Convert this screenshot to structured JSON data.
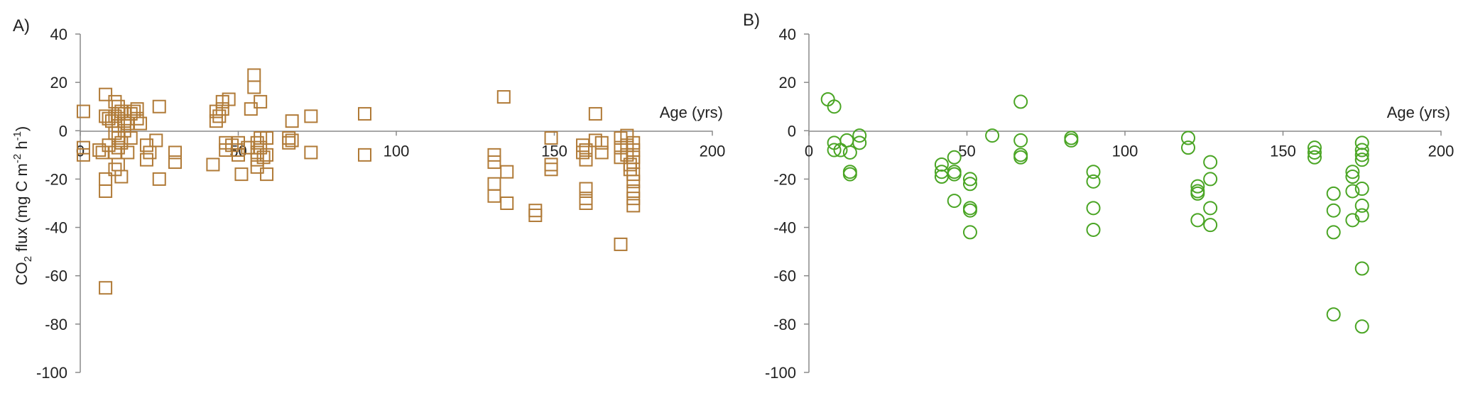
{
  "chart_data": [
    {
      "type": "scatter",
      "panel_label": "A)",
      "xlabel": "Age (yrs)",
      "ylabel": "CO2 flux (mg C m-2 h-1)",
      "ylabel_parts": {
        "pre": "CO",
        "sub": "2",
        "mid": " flux (mg C m",
        "sup1": "-2",
        "mid2": " h",
        "sup2": "-1",
        "post": ")"
      },
      "xlim": [
        0,
        200
      ],
      "ylim": [
        -100,
        40
      ],
      "x_ticks": [
        0,
        50,
        100,
        150,
        200
      ],
      "y_ticks": [
        40,
        20,
        0,
        -20,
        -40,
        -60,
        -80,
        -100
      ],
      "marker": "square",
      "color": "#b07a37",
      "points": [
        [
          1,
          8
        ],
        [
          1,
          -7
        ],
        [
          1,
          -10
        ],
        [
          6,
          -8
        ],
        [
          7,
          -9
        ],
        [
          8,
          15
        ],
        [
          8,
          6
        ],
        [
          8,
          -20
        ],
        [
          8,
          -25
        ],
        [
          8,
          -65
        ],
        [
          9,
          5
        ],
        [
          9,
          -6
        ],
        [
          10,
          4
        ],
        [
          11,
          12
        ],
        [
          11,
          6
        ],
        [
          11,
          -1
        ],
        [
          11,
          -9
        ],
        [
          11,
          -16
        ],
        [
          12,
          10
        ],
        [
          12,
          7
        ],
        [
          12,
          2
        ],
        [
          12,
          -3
        ],
        [
          12,
          -7
        ],
        [
          12,
          -14
        ],
        [
          13,
          8
        ],
        [
          13,
          -5
        ],
        [
          13,
          -19
        ],
        [
          14,
          7
        ],
        [
          14,
          4
        ],
        [
          14,
          0
        ],
        [
          15,
          3
        ],
        [
          15,
          -9
        ],
        [
          16,
          7
        ],
        [
          16,
          -3
        ],
        [
          17,
          8
        ],
        [
          18,
          5
        ],
        [
          18,
          9
        ],
        [
          19,
          3
        ],
        [
          21,
          -6
        ],
        [
          21,
          -12
        ],
        [
          22,
          -9
        ],
        [
          24,
          -4
        ],
        [
          25,
          10
        ],
        [
          25,
          -20
        ],
        [
          30,
          -9
        ],
        [
          30,
          -13
        ],
        [
          42,
          -14
        ],
        [
          43,
          8
        ],
        [
          43,
          4
        ],
        [
          44,
          6
        ],
        [
          45,
          12
        ],
        [
          45,
          9
        ],
        [
          46,
          -5
        ],
        [
          46,
          -8
        ],
        [
          47,
          13
        ],
        [
          48,
          -6
        ],
        [
          50,
          -5
        ],
        [
          50,
          -8
        ],
        [
          50,
          -10
        ],
        [
          51,
          -18
        ],
        [
          53,
          -7
        ],
        [
          54,
          9
        ],
        [
          55,
          23
        ],
        [
          55,
          18
        ],
        [
          56,
          -5
        ],
        [
          56,
          -9
        ],
        [
          56,
          -12
        ],
        [
          56,
          -15
        ],
        [
          57,
          12
        ],
        [
          57,
          -3
        ],
        [
          57,
          -7
        ],
        [
          58,
          -11
        ],
        [
          59,
          -3
        ],
        [
          59,
          -10
        ],
        [
          59,
          -18
        ],
        [
          66,
          -3
        ],
        [
          66,
          -5
        ],
        [
          67,
          4
        ],
        [
          67,
          -4
        ],
        [
          73,
          6
        ],
        [
          73,
          -9
        ],
        [
          90,
          7
        ],
        [
          90,
          -10
        ],
        [
          131,
          -10
        ],
        [
          131,
          -13
        ],
        [
          131,
          -22
        ],
        [
          131,
          -27
        ],
        [
          134,
          14
        ],
        [
          135,
          -17
        ],
        [
          135,
          -30
        ],
        [
          144,
          -33
        ],
        [
          144,
          -35
        ],
        [
          149,
          -3
        ],
        [
          149,
          -14
        ],
        [
          149,
          -16
        ],
        [
          159,
          -6
        ],
        [
          159,
          -9
        ],
        [
          160,
          -8
        ],
        [
          160,
          -12
        ],
        [
          160,
          -24
        ],
        [
          160,
          -28
        ],
        [
          160,
          -30
        ],
        [
          163,
          7
        ],
        [
          163,
          -4
        ],
        [
          165,
          -5
        ],
        [
          165,
          -9
        ],
        [
          171,
          -47
        ],
        [
          171,
          -3
        ],
        [
          171,
          -7
        ],
        [
          171,
          -11
        ],
        [
          173,
          -2
        ],
        [
          173,
          -6
        ],
        [
          173,
          -10
        ],
        [
          174,
          -14
        ],
        [
          174,
          -16
        ],
        [
          175,
          -5
        ],
        [
          175,
          -8
        ],
        [
          175,
          -11
        ],
        [
          175,
          -13
        ],
        [
          175,
          -18
        ],
        [
          175,
          -21
        ],
        [
          175,
          -25
        ],
        [
          175,
          -28
        ],
        [
          175,
          -31
        ]
      ]
    },
    {
      "type": "scatter",
      "panel_label": "B)",
      "xlabel": "Age (yrs)",
      "ylabel": "",
      "xlim": [
        0,
        200
      ],
      "ylim": [
        -100,
        40
      ],
      "x_ticks": [
        0,
        50,
        100,
        150,
        200
      ],
      "y_ticks": [
        40,
        20,
        0,
        -20,
        -40,
        -60,
        -80,
        -100
      ],
      "marker": "circle",
      "color": "#4aa524",
      "points": [
        [
          6,
          13
        ],
        [
          8,
          10
        ],
        [
          8,
          -5
        ],
        [
          8,
          -8
        ],
        [
          10,
          -8
        ],
        [
          12,
          -4
        ],
        [
          13,
          -9
        ],
        [
          13,
          -17
        ],
        [
          13,
          -18
        ],
        [
          16,
          -2
        ],
        [
          16,
          -5
        ],
        [
          42,
          -14
        ],
        [
          42,
          -17
        ],
        [
          42,
          -19
        ],
        [
          46,
          -11
        ],
        [
          46,
          -17
        ],
        [
          46,
          -18
        ],
        [
          46,
          -29
        ],
        [
          51,
          -20
        ],
        [
          51,
          -22
        ],
        [
          51,
          -32
        ],
        [
          51,
          -33
        ],
        [
          51,
          -42
        ],
        [
          58,
          -2
        ],
        [
          67,
          12
        ],
        [
          67,
          -4
        ],
        [
          67,
          -10
        ],
        [
          67,
          -11
        ],
        [
          83,
          -3
        ],
        [
          83,
          -4
        ],
        [
          90,
          -17
        ],
        [
          90,
          -21
        ],
        [
          90,
          -32
        ],
        [
          90,
          -41
        ],
        [
          120,
          -3
        ],
        [
          120,
          -7
        ],
        [
          123,
          -23
        ],
        [
          123,
          -25
        ],
        [
          123,
          -26
        ],
        [
          123,
          -37
        ],
        [
          127,
          -13
        ],
        [
          127,
          -20
        ],
        [
          127,
          -32
        ],
        [
          127,
          -39
        ],
        [
          160,
          -7
        ],
        [
          160,
          -9
        ],
        [
          160,
          -11
        ],
        [
          166,
          -26
        ],
        [
          166,
          -33
        ],
        [
          166,
          -42
        ],
        [
          166,
          -76
        ],
        [
          172,
          -17
        ],
        [
          172,
          -19
        ],
        [
          172,
          -25
        ],
        [
          172,
          -37
        ],
        [
          175,
          -5
        ],
        [
          175,
          -8
        ],
        [
          175,
          -10
        ],
        [
          175,
          -12
        ],
        [
          175,
          -24
        ],
        [
          175,
          -31
        ],
        [
          175,
          -35
        ],
        [
          175,
          -57
        ],
        [
          175,
          -81
        ]
      ]
    }
  ]
}
